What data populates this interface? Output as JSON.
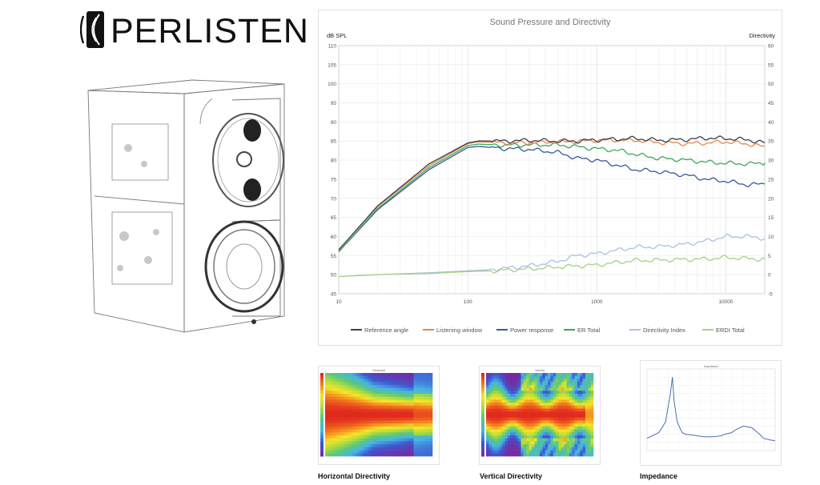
{
  "brand": {
    "name": "PERLISTEN"
  },
  "chart_data": [
    {
      "type": "line",
      "title": "Sound Pressure and Directivity",
      "ylabel": "dB SPL",
      "y2label": "Directivity",
      "xscale": "log",
      "xlim": [
        10,
        20000
      ],
      "ylim": [
        45,
        110
      ],
      "y2lim": [
        -5,
        60
      ],
      "xticks": [
        "10",
        "100",
        "1000",
        "10000"
      ],
      "yticks": [
        "110",
        "105",
        "100",
        "95",
        "90",
        "85",
        "80",
        "75",
        "70",
        "65",
        "60",
        "55",
        "50",
        "45"
      ],
      "y2ticks": [
        "60",
        "55",
        "50",
        "45",
        "40",
        "35",
        "30",
        "25",
        "20",
        "15",
        "10",
        "5",
        "0",
        "-5"
      ],
      "legend_position": "bottom",
      "series": [
        {
          "name": "Reference angle",
          "axis": "left",
          "color": "#3a3f4d",
          "x": [
            10,
            20,
            50,
            100,
            120,
            200,
            300,
            500,
            700,
            1000,
            1500,
            2000,
            3000,
            5000,
            7000,
            10000,
            15000,
            20000
          ],
          "y": [
            56.5,
            68,
            79,
            84.5,
            85,
            85,
            85.2,
            85,
            85,
            85.3,
            85.5,
            85.7,
            85.2,
            85.4,
            85.8,
            85.7,
            85.3,
            84.5
          ]
        },
        {
          "name": "Listening window",
          "axis": "left",
          "color": "#e8874a",
          "x": [
            10,
            20,
            50,
            100,
            120,
            200,
            300,
            500,
            700,
            1000,
            1500,
            2000,
            3000,
            5000,
            7000,
            10000,
            15000,
            20000
          ],
          "y": [
            56.5,
            67.8,
            78.5,
            84.3,
            84.8,
            84.5,
            84.6,
            84.8,
            84.9,
            85.2,
            85.3,
            85.2,
            84.6,
            84.3,
            84.5,
            84.8,
            84.2,
            83.5
          ]
        },
        {
          "name": "Power response",
          "axis": "left",
          "color": "#37599a",
          "x": [
            10,
            20,
            50,
            100,
            120,
            200,
            300,
            500,
            700,
            1000,
            1500,
            2000,
            3000,
            5000,
            7000,
            10000,
            15000,
            20000
          ],
          "y": [
            56,
            67,
            77.5,
            83.3,
            83.6,
            83,
            82.8,
            82,
            80.5,
            80,
            78.5,
            77.5,
            77,
            76,
            75,
            74.5,
            73.5,
            73.8
          ]
        },
        {
          "name": "ER Total",
          "axis": "left",
          "color": "#3aa85a",
          "x": [
            10,
            20,
            50,
            100,
            120,
            200,
            300,
            500,
            700,
            1000,
            1500,
            2000,
            3000,
            5000,
            7000,
            10000,
            15000,
            20000
          ],
          "y": [
            56,
            67.3,
            78,
            83.8,
            84.2,
            83.9,
            84,
            84,
            83.5,
            83,
            82.5,
            81.5,
            80.5,
            80,
            79.5,
            79.2,
            79,
            79.3
          ]
        },
        {
          "name": "Directivity Index",
          "axis": "right",
          "color": "#aac1e0",
          "x": [
            10,
            20,
            50,
            100,
            150,
            200,
            300,
            500,
            700,
            1000,
            1500,
            2000,
            3000,
            5000,
            7000,
            10000,
            15000,
            20000
          ],
          "y": [
            -0.5,
            0,
            0.5,
            1,
            1.3,
            1.7,
            2.3,
            3.5,
            5,
            5.5,
            6.5,
            7.2,
            7.3,
            8,
            8.8,
            10,
            10,
            9.5
          ]
        },
        {
          "name": "ERDI Total",
          "axis": "right",
          "color": "#a3d185",
          "x": [
            10,
            20,
            50,
            100,
            150,
            200,
            300,
            500,
            700,
            1000,
            1500,
            2000,
            3000,
            5000,
            7000,
            10000,
            15000,
            20000
          ],
          "y": [
            -0.5,
            0,
            0.3,
            0.8,
            1,
            1.2,
            1.5,
            2,
            2.3,
            2.5,
            3.3,
            3.7,
            3.8,
            4,
            4.1,
            4.5,
            4.2,
            4
          ]
        }
      ]
    },
    {
      "type": "heatmap",
      "title": "Horizontal Directivity",
      "caption": "Horizontal Directivity",
      "inner_title": "Horizontal"
    },
    {
      "type": "heatmap",
      "title": "Vertical Directivity",
      "caption": "Vertical Directivity",
      "inner_title": "Vertical"
    },
    {
      "type": "line",
      "title": "Impedance",
      "caption": "Impedance",
      "inner_title": "Impedance",
      "color": "#4d6fb0",
      "x": [
        10,
        20,
        30,
        40,
        45,
        50,
        60,
        80,
        100,
        150,
        200,
        300,
        500,
        800,
        1000,
        1500,
        2000,
        3000,
        5000,
        8000,
        10000,
        15000,
        20000
      ],
      "y": [
        0.15,
        0.22,
        0.35,
        0.7,
        0.9,
        0.6,
        0.35,
        0.22,
        0.2,
        0.19,
        0.18,
        0.17,
        0.17,
        0.18,
        0.2,
        0.22,
        0.26,
        0.3,
        0.28,
        0.2,
        0.15,
        0.13,
        0.12
      ]
    }
  ]
}
